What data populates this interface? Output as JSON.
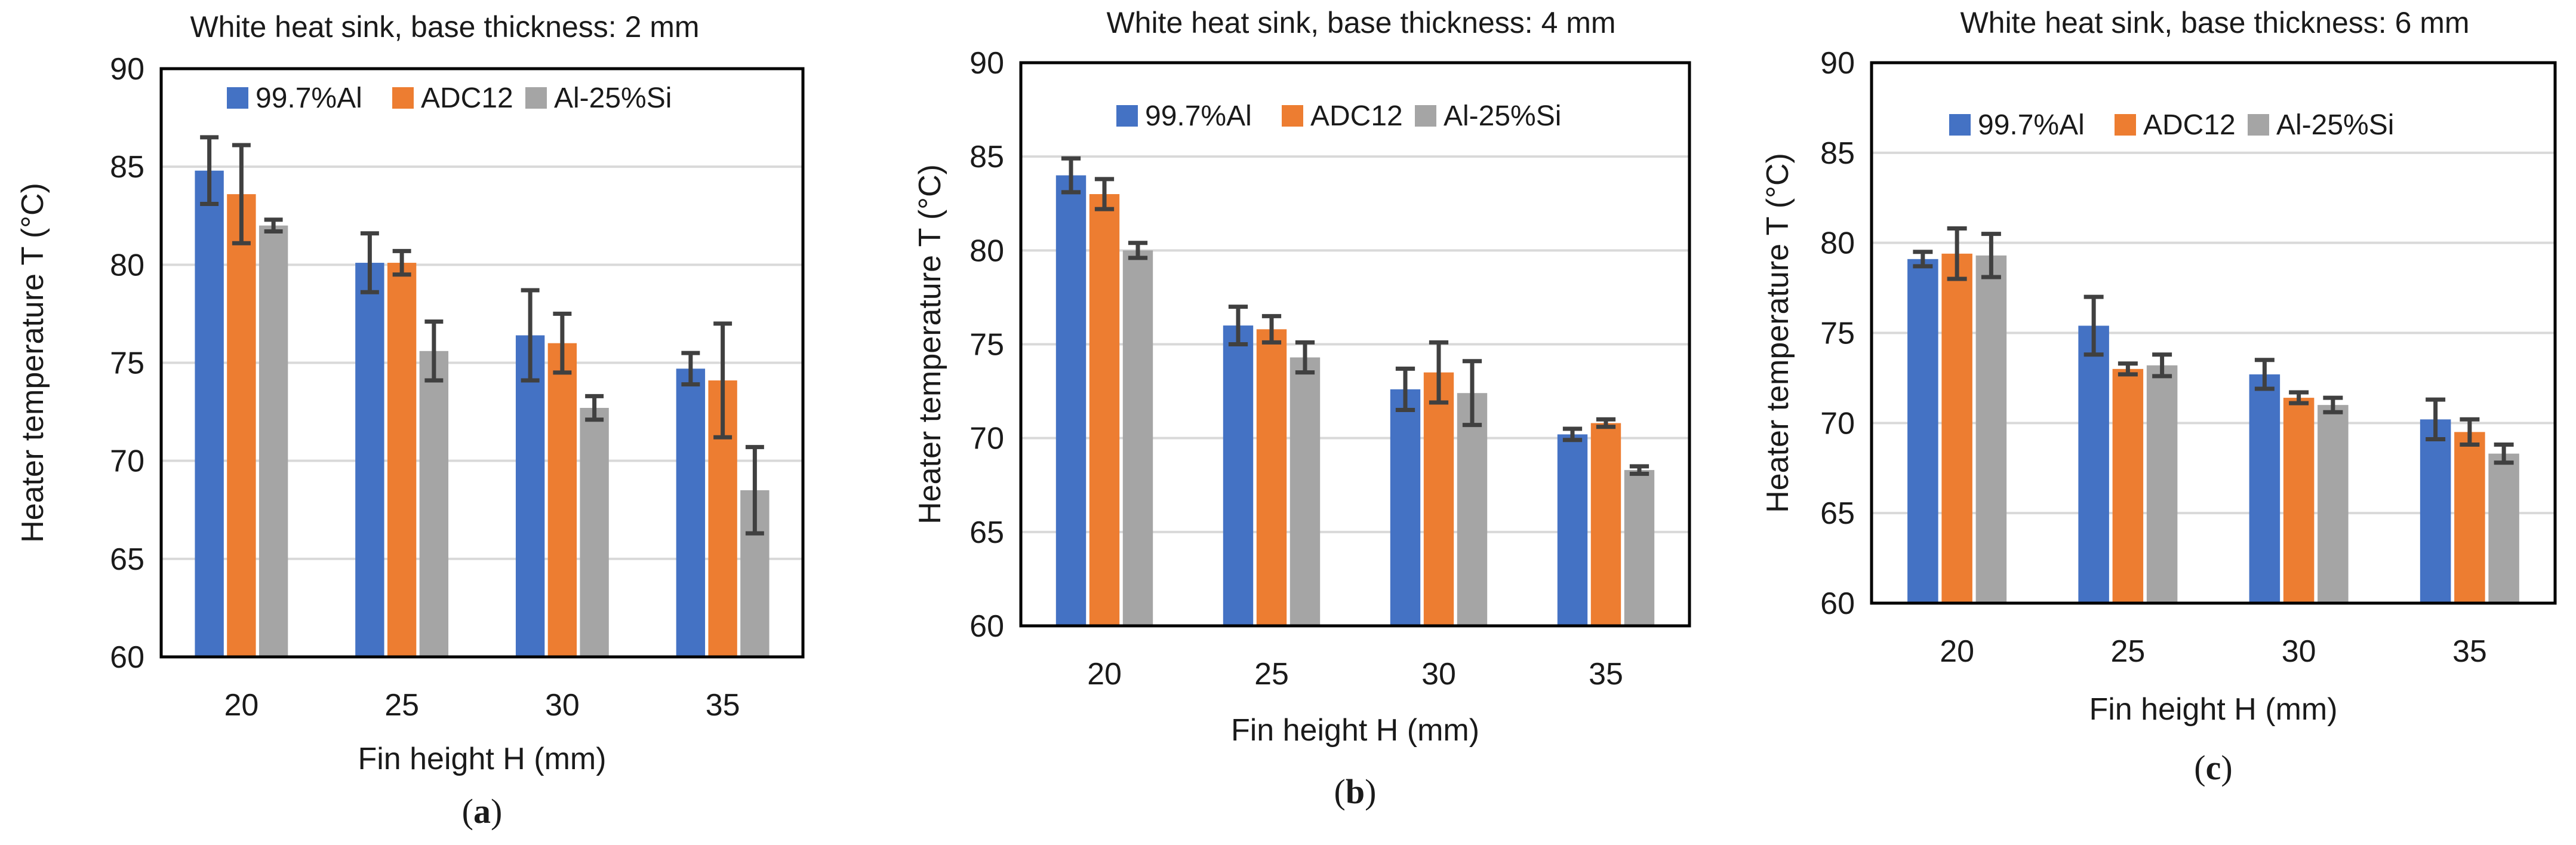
{
  "figure": {
    "colors": {
      "al997": "#4472C4",
      "adc12": "#ED7D31",
      "alsi": "#A5A5A5",
      "gridline": "#D9D9D9",
      "errorbar": "#404040",
      "frame": "#000000"
    }
  },
  "chart_data": [
    {
      "type": "bar",
      "panel": "(a)",
      "panel_letter": "a",
      "title": "White heat sink, base thickness: 2 mm",
      "xlabel": "Fin height H (mm)",
      "ylabel": "Heater temperature T (°C)",
      "ylim": [
        60,
        90
      ],
      "yticks": [
        60,
        65,
        70,
        75,
        80,
        85,
        90
      ],
      "grid": true,
      "legend_position": "top",
      "categories": [
        "20",
        "25",
        "30",
        "35"
      ],
      "series": [
        {
          "name": "99.7%Al",
          "color_key": "al997",
          "values": [
            84.8,
            80.1,
            76.4,
            74.7
          ],
          "errors": [
            1.7,
            1.5,
            2.3,
            0.8
          ]
        },
        {
          "name": "ADC12",
          "color_key": "adc12",
          "values": [
            83.6,
            80.1,
            76.0,
            74.1
          ],
          "errors": [
            2.5,
            0.6,
            1.5,
            2.9
          ]
        },
        {
          "name": "Al-25%Si",
          "color_key": "alsi",
          "values": [
            82.0,
            75.6,
            72.7,
            68.5
          ],
          "errors": [
            0.3,
            1.5,
            0.6,
            2.2
          ]
        }
      ]
    },
    {
      "type": "bar",
      "panel": "(b)",
      "panel_letter": "b",
      "title": "White heat sink, base thickness: 4 mm",
      "xlabel": "Fin height H (mm)",
      "ylabel": "Heater temperature T (°C)",
      "ylim": [
        60,
        90
      ],
      "yticks": [
        60,
        65,
        70,
        75,
        80,
        85,
        90
      ],
      "grid": true,
      "legend_position": "top",
      "categories": [
        "20",
        "25",
        "30",
        "35"
      ],
      "series": [
        {
          "name": "99.7%Al",
          "color_key": "al997",
          "values": [
            84.0,
            76.0,
            72.6,
            70.2
          ],
          "errors": [
            0.9,
            1.0,
            1.1,
            0.3
          ]
        },
        {
          "name": "ADC12",
          "color_key": "adc12",
          "values": [
            83.0,
            75.8,
            73.5,
            70.8
          ],
          "errors": [
            0.8,
            0.7,
            1.6,
            0.2
          ]
        },
        {
          "name": "Al-25%Si",
          "color_key": "alsi",
          "values": [
            80.0,
            74.3,
            72.4,
            68.3
          ],
          "errors": [
            0.4,
            0.8,
            1.7,
            0.2
          ]
        }
      ]
    },
    {
      "type": "bar",
      "panel": "(c)",
      "panel_letter": "c",
      "title": "White heat sink, base thickness: 6 mm",
      "xlabel": "Fin height H (mm)",
      "ylabel": "Heater temperature T (°C)",
      "ylim": [
        60,
        90
      ],
      "yticks": [
        60,
        65,
        70,
        75,
        80,
        85,
        90
      ],
      "grid": true,
      "legend_position": "top",
      "categories": [
        "20",
        "25",
        "30",
        "35"
      ],
      "series": [
        {
          "name": "99.7%Al",
          "color_key": "al997",
          "values": [
            79.1,
            75.4,
            72.7,
            70.2
          ],
          "errors": [
            0.4,
            1.6,
            0.8,
            1.1
          ]
        },
        {
          "name": "ADC12",
          "color_key": "adc12",
          "values": [
            79.4,
            73.0,
            71.4,
            69.5
          ],
          "errors": [
            1.4,
            0.3,
            0.3,
            0.7
          ]
        },
        {
          "name": "Al-25%Si",
          "color_key": "alsi",
          "values": [
            79.3,
            73.2,
            71.0,
            68.3
          ],
          "errors": [
            1.2,
            0.6,
            0.4,
            0.5
          ]
        }
      ]
    }
  ]
}
